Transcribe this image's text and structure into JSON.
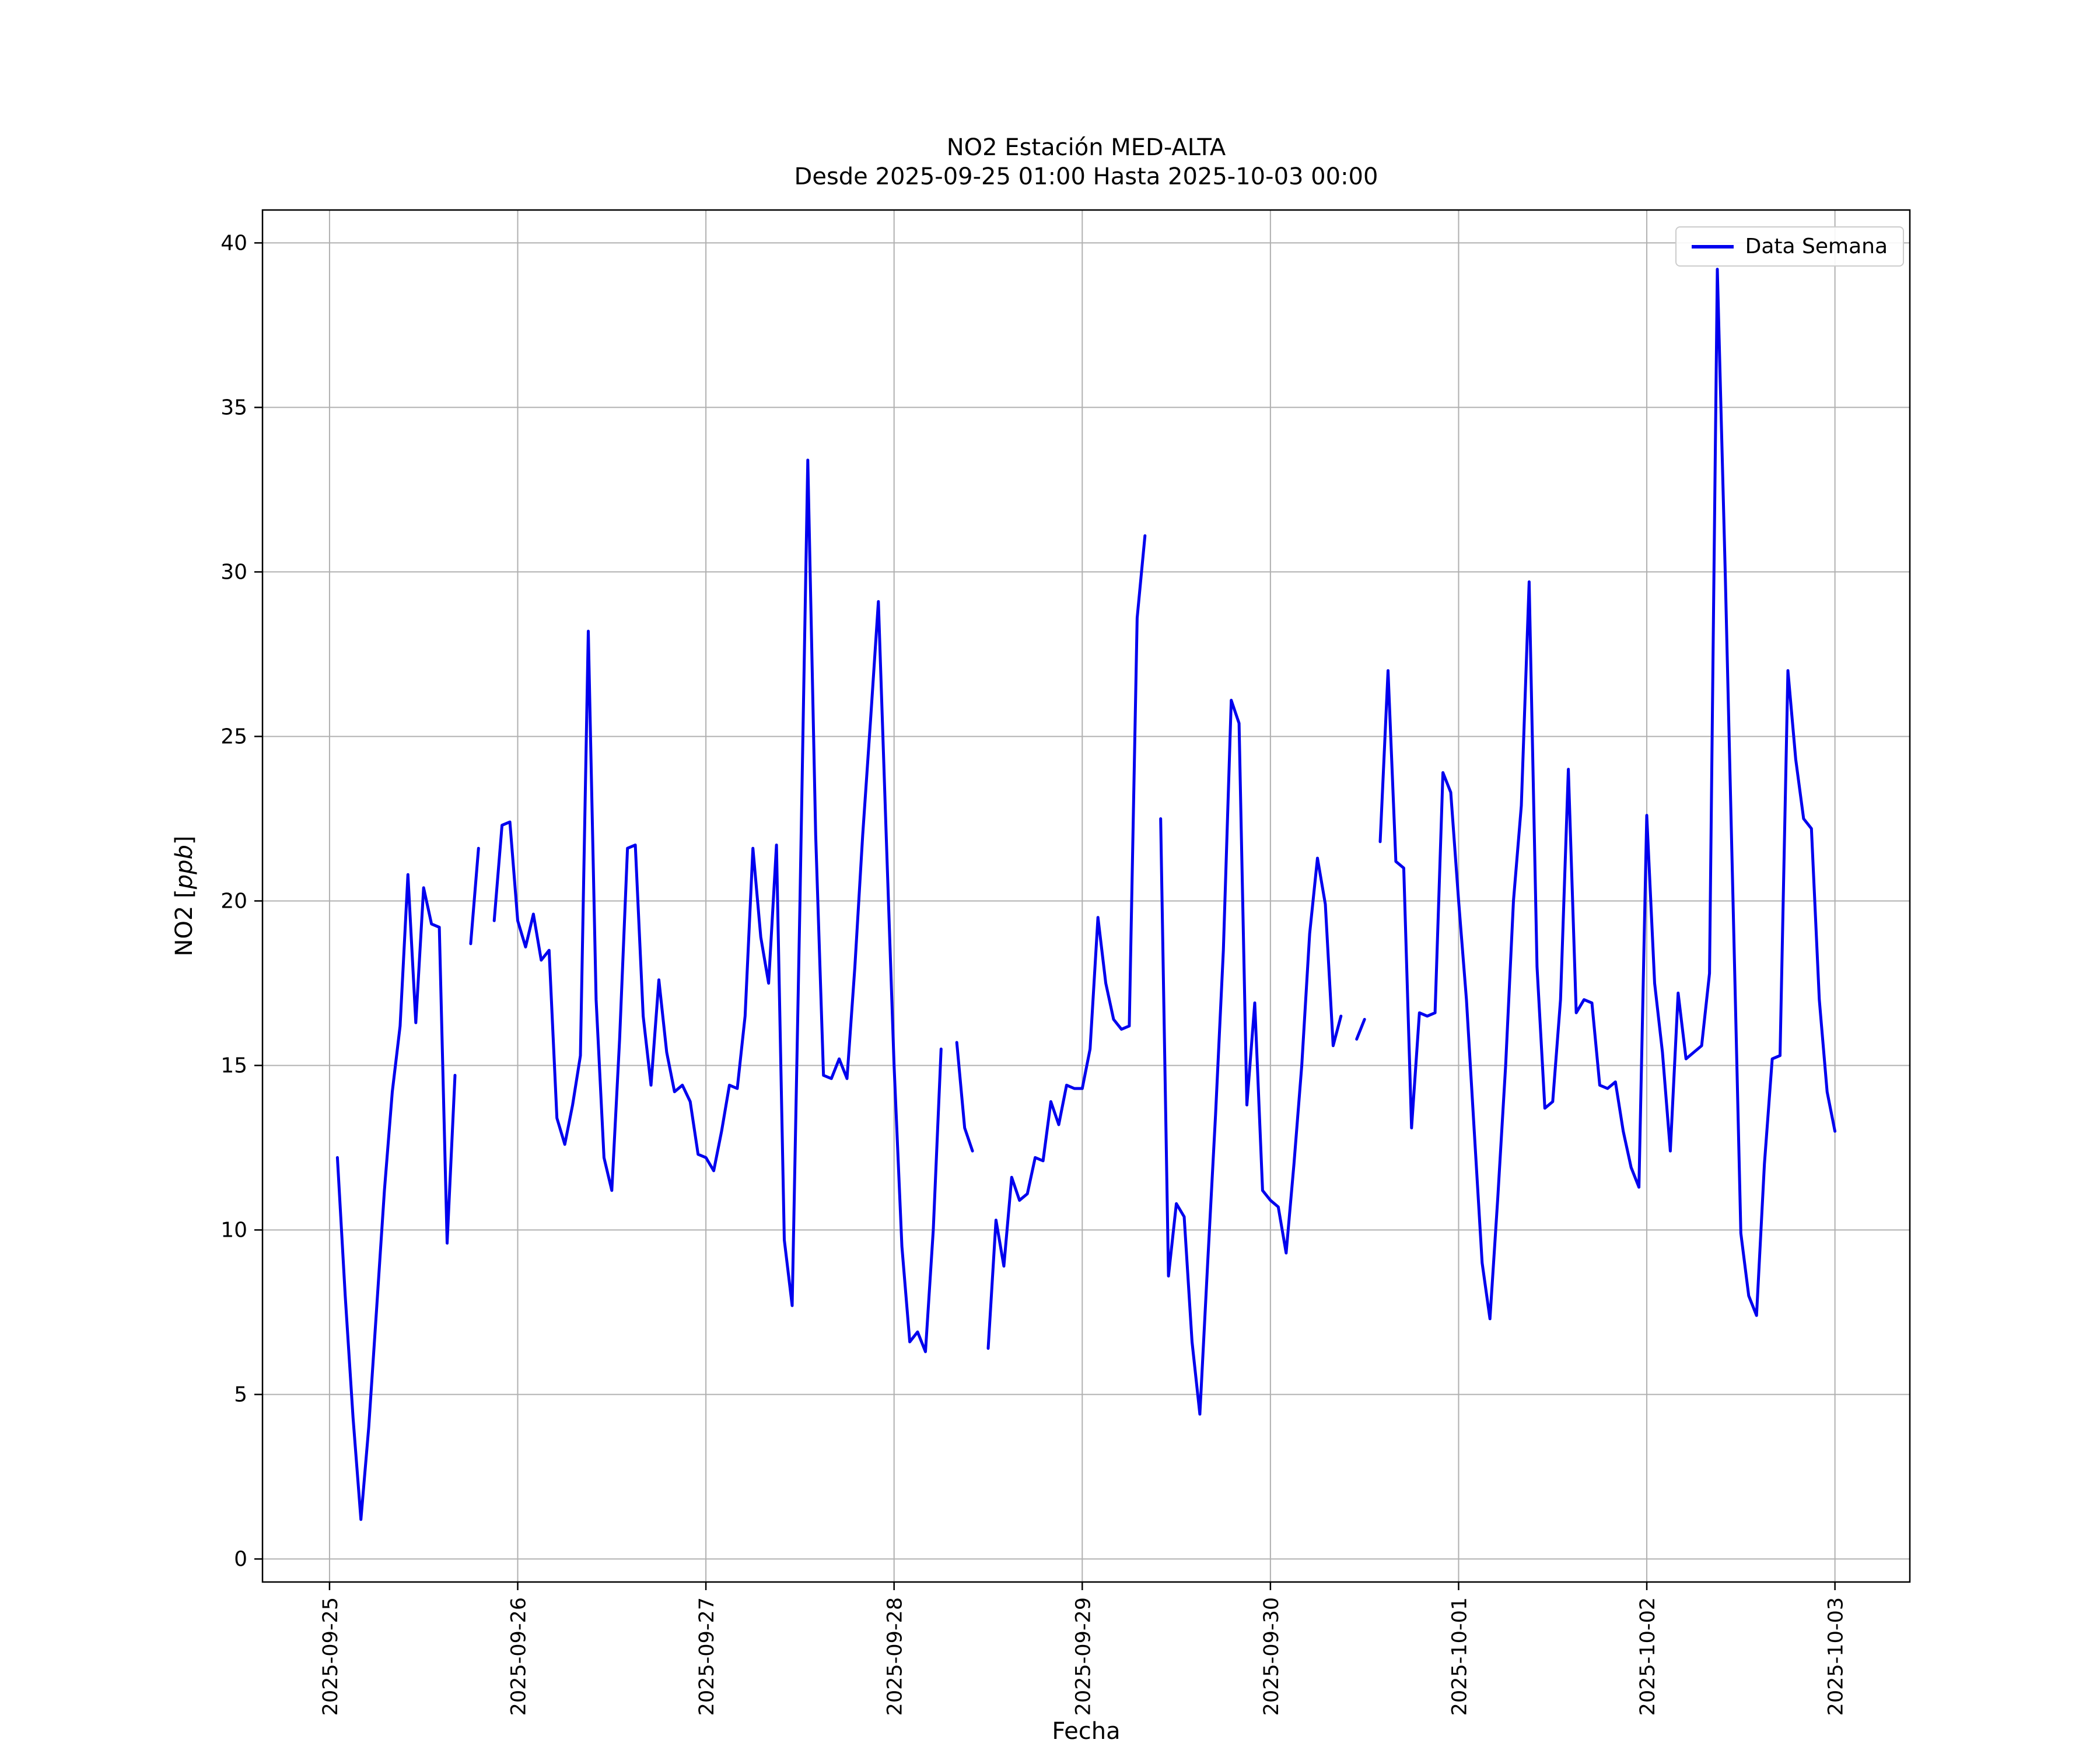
{
  "figure": {
    "title_line1": "NO2 Estación MED-ALTA",
    "title_line2": "Desde 2025-09-25 01:00 Hasta 2025-10-03 00:00",
    "xlabel": "Fecha",
    "ylabel_prefix": "NO2 [",
    "ylabel_italic": "ppb",
    "ylabel_suffix": "]",
    "legend_label": "Data Semana",
    "line_color": "#0000ee",
    "grid_color": "#b0b0b0",
    "spine_color": "#000000",
    "background": "#ffffff"
  },
  "chart_data": {
    "type": "line",
    "title": "NO2 Estación MED-ALTA",
    "subtitle": "Desde 2025-09-25 01:00 Hasta 2025-10-03 00:00",
    "xlabel": "Fecha",
    "ylabel": "NO2 [ppb]",
    "legend": [
      "Data Semana"
    ],
    "legend_position": "upper right",
    "grid": true,
    "start": "2025-09-25 01:00",
    "end": "2025-10-03 00:00",
    "interval_hours": 1,
    "x_tick_labels": [
      "2025-09-25",
      "2025-09-26",
      "2025-09-27",
      "2025-09-28",
      "2025-09-29",
      "2025-09-30",
      "2025-10-01",
      "2025-10-02",
      "2025-10-03"
    ],
    "y_ticks": [
      0,
      5,
      10,
      15,
      20,
      25,
      30,
      35,
      40
    ],
    "ylim": [
      -0.7,
      41.0
    ],
    "x_margin_hours": 9.55,
    "values": [
      12.2,
      8.0,
      4.3,
      1.2,
      4.0,
      7.6,
      11.2,
      14.2,
      16.2,
      20.8,
      16.3,
      20.4,
      19.3,
      19.2,
      9.6,
      14.7,
      null,
      18.7,
      21.6,
      null,
      19.4,
      22.3,
      22.4,
      19.4,
      18.6,
      19.6,
      18.2,
      18.5,
      13.4,
      12.6,
      13.8,
      15.3,
      28.2,
      17.0,
      12.2,
      11.2,
      15.8,
      21.6,
      21.7,
      16.5,
      14.4,
      17.6,
      15.4,
      14.2,
      14.4,
      13.9,
      12.3,
      12.2,
      11.8,
      13.0,
      14.4,
      14.3,
      16.5,
      21.6,
      18.9,
      17.5,
      21.7,
      9.7,
      7.7,
      20.0,
      33.4,
      22.0,
      14.7,
      14.6,
      15.2,
      14.6,
      18.0,
      22.0,
      25.5,
      29.1,
      22.0,
      15.0,
      9.5,
      6.6,
      6.9,
      6.3,
      10.0,
      15.5,
      null,
      15.7,
      13.1,
      12.4,
      null,
      6.4,
      10.3,
      8.9,
      11.6,
      10.9,
      11.1,
      12.2,
      12.1,
      13.9,
      13.2,
      14.4,
      14.3,
      14.3,
      15.5,
      19.5,
      17.5,
      16.4,
      16.1,
      16.2,
      28.6,
      31.1,
      null,
      22.5,
      8.6,
      10.8,
      10.4,
      6.6,
      4.4,
      9.0,
      13.5,
      18.5,
      26.1,
      25.4,
      13.8,
      16.9,
      11.2,
      10.9,
      10.7,
      9.3,
      12.0,
      15.0,
      19.0,
      21.3,
      19.9,
      15.6,
      16.5,
      null,
      15.8,
      16.4,
      null,
      21.8,
      27.0,
      21.2,
      21.0,
      13.1,
      16.6,
      16.5,
      16.6,
      23.9,
      23.3,
      20.0,
      17.0,
      13.0,
      9.0,
      7.3,
      11.0,
      15.0,
      20.0,
      22.9,
      29.7,
      18.0,
      13.7,
      13.9,
      17.0,
      24.0,
      16.6,
      17.0,
      16.9,
      14.4,
      14.3,
      14.5,
      13.0,
      11.9,
      11.3,
      22.6,
      17.5,
      15.4,
      12.4,
      17.2,
      15.2,
      15.4,
      15.6,
      17.8,
      39.2,
      30.0,
      20.0,
      9.9,
      8.0,
      7.4,
      12.0,
      15.2,
      15.3,
      27.0,
      24.3,
      22.5,
      22.2,
      17.0,
      14.2,
      13.0
    ]
  }
}
